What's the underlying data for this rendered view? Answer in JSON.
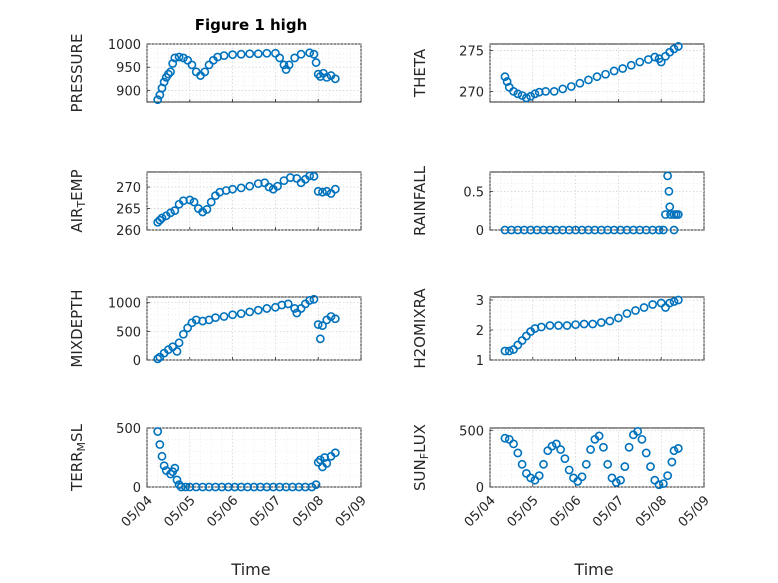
{
  "figure": {
    "title": "Figure 1 high",
    "xlabel": "Time",
    "colors": {
      "marker": "#0072BD",
      "axis": "#262626",
      "grid": "#c8c8c8",
      "background": "#ffffff"
    }
  },
  "chart_data": [
    {
      "type": "scatter",
      "id": "pressure",
      "ylabel": "PRESSURE",
      "ylabel_sub": "",
      "ylim": [
        875,
        1000
      ],
      "yticks": [
        900,
        950,
        1000
      ],
      "xlim": [
        "05/04",
        "05/09"
      ],
      "xticks": [
        "05/04",
        "05/05",
        "05/06",
        "05/07",
        "05/08",
        "05/09"
      ],
      "show_xticklabels": false,
      "points": [
        [
          4.25,
          880
        ],
        [
          4.3,
          890
        ],
        [
          4.35,
          905
        ],
        [
          4.4,
          918
        ],
        [
          4.45,
          928
        ],
        [
          4.5,
          935
        ],
        [
          4.55,
          940
        ],
        [
          4.6,
          958
        ],
        [
          4.65,
          970
        ],
        [
          4.75,
          972
        ],
        [
          4.85,
          970
        ],
        [
          4.95,
          965
        ],
        [
          5.05,
          955
        ],
        [
          5.15,
          940
        ],
        [
          5.25,
          932
        ],
        [
          5.35,
          940
        ],
        [
          5.45,
          955
        ],
        [
          5.55,
          965
        ],
        [
          5.65,
          972
        ],
        [
          5.8,
          975
        ],
        [
          6.0,
          977
        ],
        [
          6.2,
          978
        ],
        [
          6.4,
          979
        ],
        [
          6.6,
          979
        ],
        [
          6.8,
          980
        ],
        [
          7.0,
          980
        ],
        [
          7.1,
          970
        ],
        [
          7.2,
          955
        ],
        [
          7.25,
          945
        ],
        [
          7.32,
          955
        ],
        [
          7.45,
          970
        ],
        [
          7.6,
          978
        ],
        [
          7.8,
          981
        ],
        [
          7.9,
          978
        ],
        [
          7.95,
          960
        ],
        [
          8.0,
          935
        ],
        [
          8.05,
          930
        ],
        [
          8.12,
          937
        ],
        [
          8.2,
          928
        ],
        [
          8.3,
          932
        ],
        [
          8.4,
          925
        ]
      ]
    },
    {
      "type": "scatter",
      "id": "theta",
      "ylabel": "THETA",
      "ylabel_sub": "",
      "ylim": [
        268.7,
        275.8
      ],
      "yticks": [
        270,
        275
      ],
      "xlim": [
        "05/04",
        "05/09"
      ],
      "xticks": [
        "05/04",
        "05/05",
        "05/06",
        "05/07",
        "05/08",
        "05/09"
      ],
      "show_xticklabels": false,
      "points": [
        [
          4.35,
          271.8
        ],
        [
          4.4,
          271.2
        ],
        [
          4.45,
          270.5
        ],
        [
          4.55,
          270.0
        ],
        [
          4.65,
          269.7
        ],
        [
          4.75,
          269.5
        ],
        [
          4.85,
          269.2
        ],
        [
          4.95,
          269.4
        ],
        [
          5.05,
          269.7
        ],
        [
          5.15,
          269.9
        ],
        [
          5.3,
          270.0
        ],
        [
          5.5,
          270.0
        ],
        [
          5.7,
          270.3
        ],
        [
          5.9,
          270.6
        ],
        [
          6.1,
          271.0
        ],
        [
          6.3,
          271.4
        ],
        [
          6.5,
          271.8
        ],
        [
          6.7,
          272.1
        ],
        [
          6.9,
          272.5
        ],
        [
          7.1,
          272.8
        ],
        [
          7.3,
          273.2
        ],
        [
          7.5,
          273.6
        ],
        [
          7.7,
          273.9
        ],
        [
          7.85,
          274.2
        ],
        [
          7.95,
          274.0
        ],
        [
          8.0,
          273.6
        ],
        [
          8.1,
          274.3
        ],
        [
          8.2,
          274.8
        ],
        [
          8.3,
          275.2
        ],
        [
          8.4,
          275.5
        ]
      ]
    },
    {
      "type": "scatter",
      "id": "air_temp",
      "ylabel": "AIR",
      "ylabel_sub": "T",
      "ylabel_tail": "EMP",
      "ylim": [
        260,
        273.5
      ],
      "yticks": [
        260,
        265,
        270
      ],
      "xlim": [
        "05/04",
        "05/09"
      ],
      "xticks": [
        "05/04",
        "05/05",
        "05/06",
        "05/07",
        "05/08",
        "05/09"
      ],
      "show_xticklabels": false,
      "points": [
        [
          4.25,
          261.8
        ],
        [
          4.3,
          262.3
        ],
        [
          4.35,
          262.8
        ],
        [
          4.45,
          263.3
        ],
        [
          4.55,
          264.0
        ],
        [
          4.65,
          264.5
        ],
        [
          4.75,
          266.0
        ],
        [
          4.85,
          266.8
        ],
        [
          5.0,
          267.0
        ],
        [
          5.1,
          266.5
        ],
        [
          5.2,
          265.0
        ],
        [
          5.3,
          264.2
        ],
        [
          5.4,
          264.8
        ],
        [
          5.5,
          266.5
        ],
        [
          5.6,
          268.0
        ],
        [
          5.7,
          268.8
        ],
        [
          5.85,
          269.2
        ],
        [
          6.0,
          269.5
        ],
        [
          6.2,
          269.8
        ],
        [
          6.4,
          270.2
        ],
        [
          6.6,
          270.8
        ],
        [
          6.75,
          271.0
        ],
        [
          6.85,
          270.0
        ],
        [
          6.95,
          269.5
        ],
        [
          7.05,
          270.2
        ],
        [
          7.2,
          271.5
        ],
        [
          7.35,
          272.2
        ],
        [
          7.5,
          272.0
        ],
        [
          7.6,
          271.0
        ],
        [
          7.7,
          271.8
        ],
        [
          7.8,
          272.6
        ],
        [
          7.9,
          272.5
        ],
        [
          8.0,
          269.0
        ],
        [
          8.1,
          268.8
        ],
        [
          8.2,
          269.0
        ],
        [
          8.3,
          268.5
        ],
        [
          8.4,
          269.5
        ]
      ]
    },
    {
      "type": "scatter",
      "id": "rainfall",
      "ylabel": "RAINFALL",
      "ylabel_sub": "",
      "ylim": [
        0,
        0.75
      ],
      "yticks": [
        0,
        0.5
      ],
      "xlim": [
        "05/04",
        "05/09"
      ],
      "xticks": [
        "05/04",
        "05/05",
        "05/06",
        "05/07",
        "05/08",
        "05/09"
      ],
      "show_xticklabels": false,
      "points": [
        [
          4.35,
          0
        ],
        [
          4.5,
          0
        ],
        [
          4.65,
          0
        ],
        [
          4.8,
          0
        ],
        [
          4.95,
          0
        ],
        [
          5.1,
          0
        ],
        [
          5.25,
          0
        ],
        [
          5.4,
          0
        ],
        [
          5.55,
          0
        ],
        [
          5.7,
          0
        ],
        [
          5.85,
          0
        ],
        [
          6.0,
          0
        ],
        [
          6.15,
          0
        ],
        [
          6.3,
          0
        ],
        [
          6.45,
          0
        ],
        [
          6.6,
          0
        ],
        [
          6.75,
          0
        ],
        [
          6.9,
          0
        ],
        [
          7.05,
          0
        ],
        [
          7.2,
          0
        ],
        [
          7.35,
          0
        ],
        [
          7.5,
          0
        ],
        [
          7.65,
          0
        ],
        [
          7.8,
          0
        ],
        [
          7.95,
          0
        ],
        [
          8.05,
          0
        ],
        [
          8.1,
          0.2
        ],
        [
          8.15,
          0.7
        ],
        [
          8.18,
          0.5
        ],
        [
          8.2,
          0.3
        ],
        [
          8.22,
          0.2
        ],
        [
          8.3,
          0.2
        ],
        [
          8.35,
          0.2
        ],
        [
          8.3,
          0
        ],
        [
          8.4,
          0.2
        ]
      ]
    },
    {
      "type": "scatter",
      "id": "mixdepth",
      "ylabel": "MIXDEPTH",
      "ylabel_sub": "",
      "ylim": [
        0,
        1100
      ],
      "yticks": [
        0,
        500,
        1000
      ],
      "xlim": [
        "05/04",
        "05/09"
      ],
      "xticks": [
        "05/04",
        "05/05",
        "05/06",
        "05/07",
        "05/08",
        "05/09"
      ],
      "show_xticklabels": false,
      "points": [
        [
          4.25,
          20
        ],
        [
          4.3,
          50
        ],
        [
          4.4,
          120
        ],
        [
          4.5,
          180
        ],
        [
          4.6,
          230
        ],
        [
          4.7,
          150
        ],
        [
          4.75,
          300
        ],
        [
          4.85,
          450
        ],
        [
          4.95,
          560
        ],
        [
          5.05,
          650
        ],
        [
          5.15,
          700
        ],
        [
          5.3,
          680
        ],
        [
          5.45,
          700
        ],
        [
          5.6,
          740
        ],
        [
          5.8,
          760
        ],
        [
          6.0,
          790
        ],
        [
          6.2,
          810
        ],
        [
          6.4,
          840
        ],
        [
          6.6,
          870
        ],
        [
          6.8,
          900
        ],
        [
          7.0,
          920
        ],
        [
          7.15,
          960
        ],
        [
          7.3,
          980
        ],
        [
          7.45,
          900
        ],
        [
          7.5,
          820
        ],
        [
          7.6,
          900
        ],
        [
          7.7,
          980
        ],
        [
          7.8,
          1040
        ],
        [
          7.9,
          1060
        ],
        [
          8.0,
          620
        ],
        [
          8.05,
          370
        ],
        [
          8.1,
          600
        ],
        [
          8.2,
          700
        ],
        [
          8.3,
          760
        ],
        [
          8.4,
          720
        ]
      ]
    },
    {
      "type": "scatter",
      "id": "h2omixra",
      "ylabel": "H2OMIXRA",
      "ylabel_sub": "",
      "ylim": [
        1,
        3.1
      ],
      "yticks": [
        1,
        2,
        3
      ],
      "xlim": [
        "05/04",
        "05/09"
      ],
      "xticks": [
        "05/04",
        "05/05",
        "05/06",
        "05/07",
        "05/08",
        "05/09"
      ],
      "show_xticklabels": false,
      "points": [
        [
          4.35,
          1.3
        ],
        [
          4.45,
          1.3
        ],
        [
          4.55,
          1.35
        ],
        [
          4.65,
          1.5
        ],
        [
          4.75,
          1.65
        ],
        [
          4.85,
          1.8
        ],
        [
          4.95,
          1.95
        ],
        [
          5.05,
          2.05
        ],
        [
          5.2,
          2.1
        ],
        [
          5.4,
          2.15
        ],
        [
          5.6,
          2.15
        ],
        [
          5.8,
          2.15
        ],
        [
          6.0,
          2.18
        ],
        [
          6.2,
          2.2
        ],
        [
          6.4,
          2.2
        ],
        [
          6.6,
          2.25
        ],
        [
          6.8,
          2.3
        ],
        [
          7.0,
          2.4
        ],
        [
          7.2,
          2.55
        ],
        [
          7.4,
          2.65
        ],
        [
          7.6,
          2.75
        ],
        [
          7.8,
          2.85
        ],
        [
          8.0,
          2.9
        ],
        [
          8.1,
          2.75
        ],
        [
          8.2,
          2.9
        ],
        [
          8.3,
          2.95
        ],
        [
          8.4,
          3.0
        ]
      ]
    },
    {
      "type": "scatter",
      "id": "terr_msl",
      "ylabel": "TERR",
      "ylabel_sub": "M",
      "ylabel_tail": "SL",
      "ylim": [
        0,
        500
      ],
      "yticks": [
        0,
        500
      ],
      "xlim": [
        "05/04",
        "05/09"
      ],
      "xticks": [
        "05/04",
        "05/05",
        "05/06",
        "05/07",
        "05/08",
        "05/09"
      ],
      "show_xticklabels": true,
      "points": [
        [
          4.25,
          470
        ],
        [
          4.3,
          360
        ],
        [
          4.35,
          260
        ],
        [
          4.4,
          180
        ],
        [
          4.45,
          140
        ],
        [
          4.55,
          110
        ],
        [
          4.6,
          130
        ],
        [
          4.65,
          160
        ],
        [
          4.7,
          60
        ],
        [
          4.75,
          20
        ],
        [
          4.8,
          0
        ],
        [
          4.9,
          0
        ],
        [
          5.0,
          0
        ],
        [
          5.15,
          0
        ],
        [
          5.3,
          0
        ],
        [
          5.45,
          0
        ],
        [
          5.6,
          0
        ],
        [
          5.75,
          0
        ],
        [
          5.9,
          0
        ],
        [
          6.05,
          0
        ],
        [
          6.2,
          0
        ],
        [
          6.35,
          0
        ],
        [
          6.5,
          0
        ],
        [
          6.65,
          0
        ],
        [
          6.8,
          0
        ],
        [
          6.95,
          0
        ],
        [
          7.1,
          0
        ],
        [
          7.25,
          0
        ],
        [
          7.4,
          0
        ],
        [
          7.55,
          0
        ],
        [
          7.7,
          0
        ],
        [
          7.85,
          0
        ],
        [
          7.95,
          20
        ],
        [
          8.0,
          210
        ],
        [
          8.05,
          230
        ],
        [
          8.1,
          170
        ],
        [
          8.15,
          250
        ],
        [
          8.2,
          200
        ],
        [
          8.3,
          260
        ],
        [
          8.4,
          290
        ]
      ]
    },
    {
      "type": "scatter",
      "id": "sun_flux",
      "ylabel": "SUN",
      "ylabel_sub": "F",
      "ylabel_tail": "LUX",
      "ylim": [
        0,
        520
      ],
      "yticks": [
        0,
        500
      ],
      "xlim": [
        "05/04",
        "05/09"
      ],
      "xticks": [
        "05/04",
        "05/05",
        "05/06",
        "05/07",
        "05/08",
        "05/09"
      ],
      "show_xticklabels": true,
      "points": [
        [
          4.35,
          430
        ],
        [
          4.45,
          420
        ],
        [
          4.55,
          380
        ],
        [
          4.65,
          300
        ],
        [
          4.75,
          200
        ],
        [
          4.85,
          120
        ],
        [
          4.95,
          80
        ],
        [
          5.05,
          60
        ],
        [
          5.15,
          100
        ],
        [
          5.25,
          200
        ],
        [
          5.35,
          320
        ],
        [
          5.45,
          360
        ],
        [
          5.55,
          380
        ],
        [
          5.65,
          330
        ],
        [
          5.75,
          250
        ],
        [
          5.85,
          150
        ],
        [
          5.95,
          80
        ],
        [
          6.05,
          50
        ],
        [
          6.15,
          90
        ],
        [
          6.25,
          200
        ],
        [
          6.35,
          330
        ],
        [
          6.45,
          420
        ],
        [
          6.55,
          450
        ],
        [
          6.65,
          350
        ],
        [
          6.75,
          200
        ],
        [
          6.85,
          80
        ],
        [
          6.95,
          40
        ],
        [
          7.05,
          60
        ],
        [
          7.15,
          180
        ],
        [
          7.25,
          350
        ],
        [
          7.35,
          460
        ],
        [
          7.45,
          490
        ],
        [
          7.55,
          420
        ],
        [
          7.65,
          300
        ],
        [
          7.75,
          180
        ],
        [
          7.85,
          60
        ],
        [
          7.95,
          20
        ],
        [
          8.05,
          30
        ],
        [
          8.15,
          100
        ],
        [
          8.25,
          220
        ],
        [
          8.3,
          320
        ],
        [
          8.4,
          340
        ]
      ]
    }
  ]
}
